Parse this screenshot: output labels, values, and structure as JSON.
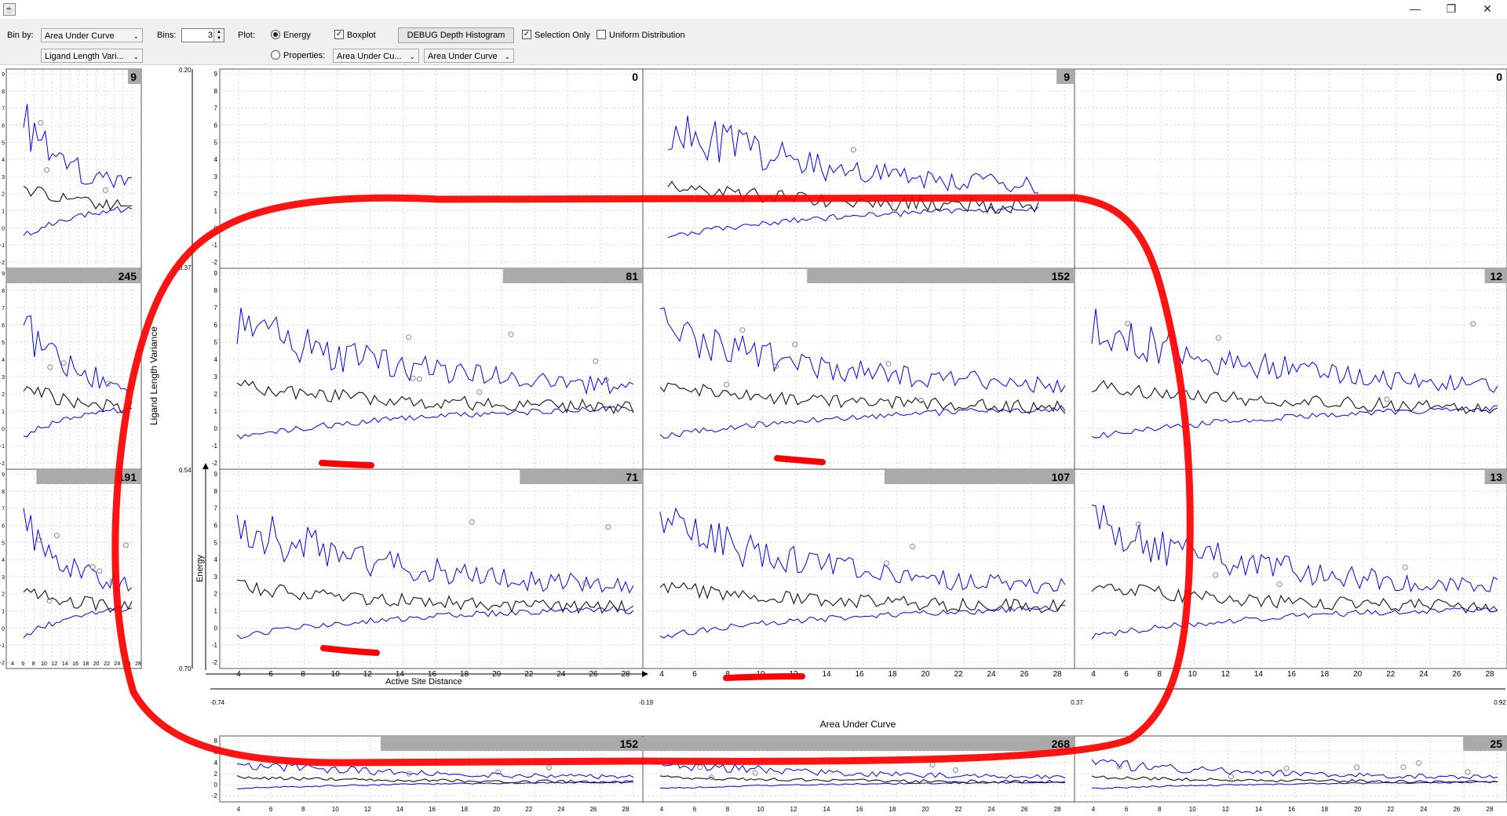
{
  "window": {
    "icon": "java-app-icon",
    "controls": [
      "minimize-icon",
      "restore-icon",
      "close-icon"
    ]
  },
  "toolbar": {
    "bin_by_label": "Bin by:",
    "bin_by_primary": "Area Under Curve",
    "bin_by_secondary": "Ligand Length Vari...",
    "bins_label": "Bins:",
    "bins_value": "3",
    "plot_label": "Plot:",
    "energy_radio": "Energy",
    "properties_radio": "Properties:",
    "properties_x": "Area Under Cu...",
    "properties_y": "Area Under Curve",
    "boxplot": "Boxplot",
    "debug_button": "DEBUG Depth Histogram",
    "selection_only": "Selection Only",
    "uniform_distribution": "Uniform Distribution"
  },
  "colors": {
    "series_bound": "#0000ee",
    "series_mean": "#222222",
    "count_bar": "#aaaaaa",
    "grid": "#d8d8d8",
    "annotation": "#ff0000"
  },
  "plot": {
    "x_axis_label": "Active Site Distance",
    "y_axis_label": "Energy",
    "bin_y_axis_label": "Ligand Length Variance",
    "bin_x_axis_label": "Area Under Curve",
    "x_ticks": [
      "4",
      "6",
      "8",
      "10",
      "12",
      "14",
      "16",
      "18",
      "20",
      "22",
      "24",
      "26",
      "28"
    ],
    "side_x_ticks": [
      "4",
      "6",
      "8",
      "10",
      "12",
      "14",
      "16",
      "18",
      "20",
      "22",
      "24",
      "26",
      "28"
    ],
    "y_ticks": [
      "-2",
      "-1",
      "0",
      "1",
      "2",
      "3",
      "4",
      "5",
      "6",
      "7",
      "8",
      "9"
    ],
    "bottom_y_ticks": [
      "-2",
      "0",
      "2",
      "4",
      "6",
      "8"
    ],
    "bin_y_ticks": [
      "0.20",
      "0.37",
      "0.54",
      "0.70"
    ],
    "bin_x_ticks": [
      "-0.74",
      "-0.19",
      "0.37",
      "0.92"
    ]
  },
  "cells": [
    {
      "id": "r0c0",
      "count": "0",
      "fraction": 0
    },
    {
      "id": "r0c1",
      "count": "9",
      "fraction": 0.04
    },
    {
      "id": "r0c2",
      "count": "0",
      "fraction": 0
    },
    {
      "id": "r1c0",
      "count": "81",
      "fraction": 0.33
    },
    {
      "id": "r1c1",
      "count": "152",
      "fraction": 0.62
    },
    {
      "id": "r1c2",
      "count": "12",
      "fraction": 0.05
    },
    {
      "id": "r2c0",
      "count": "71",
      "fraction": 0.29
    },
    {
      "id": "r2c1",
      "count": "107",
      "fraction": 0.44
    },
    {
      "id": "r2c2",
      "count": "13",
      "fraction": 0.05
    }
  ],
  "side_cells": [
    {
      "id": "side-r0",
      "count": "9",
      "fraction": 0.04
    },
    {
      "id": "side-r1",
      "count": "245",
      "fraction": 1.0
    },
    {
      "id": "side-r2",
      "count": "191",
      "fraction": 0.78
    }
  ],
  "bottom_cells": [
    {
      "id": "bottom-c0",
      "count": "152",
      "fraction": 0.62
    },
    {
      "id": "bottom-c1",
      "count": "268",
      "fraction": 1.0
    },
    {
      "id": "bottom-c2",
      "count": "25",
      "fraction": 0.1
    }
  ]
}
